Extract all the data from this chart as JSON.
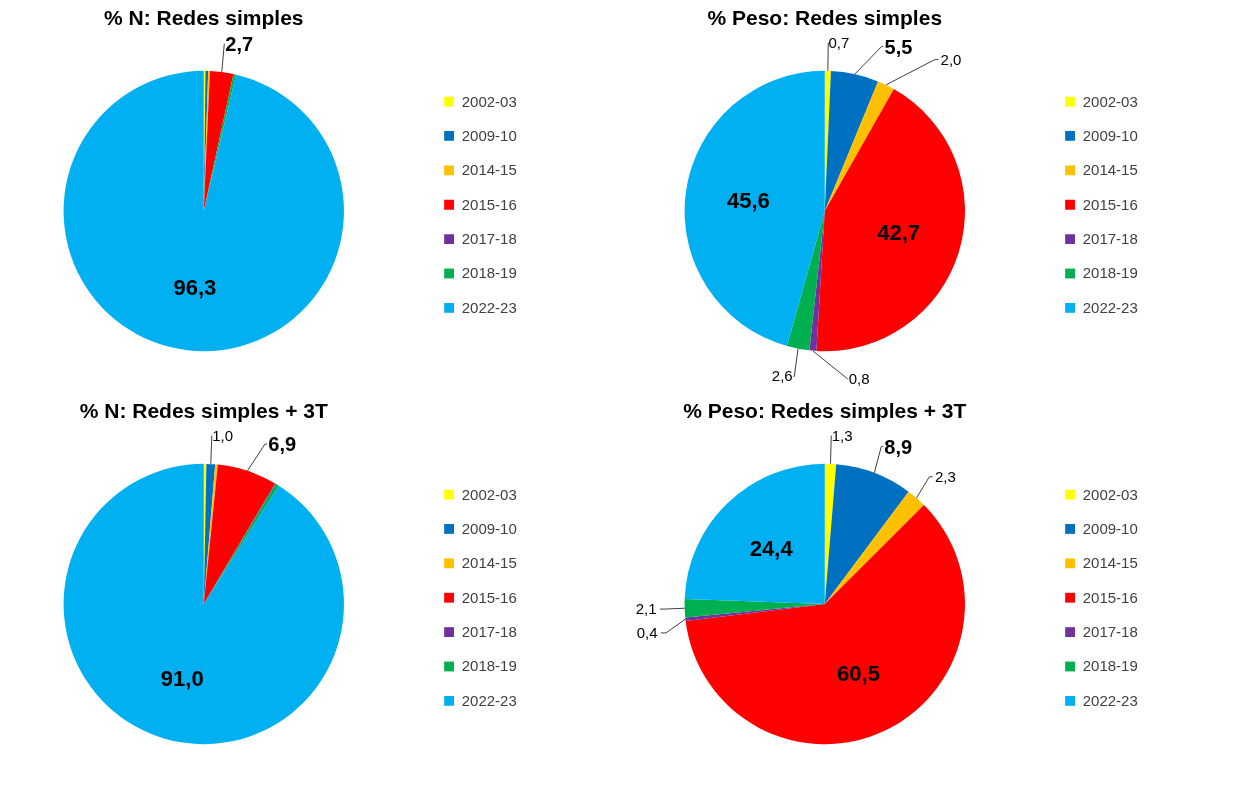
{
  "chart_data": [
    {
      "type": "pie",
      "title": "% N: Redes simples",
      "categories": [
        "2002-03",
        "2009-10",
        "2014-15",
        "2015-16",
        "2017-18",
        "2018-19",
        "2022-23"
      ],
      "values": [
        0.2,
        0.3,
        0.2,
        2.7,
        0,
        0.3,
        96.3
      ],
      "colors": [
        "#ffff00",
        "#0070c0",
        "#ffc000",
        "#ff0000",
        "#7030a0",
        "#00b050",
        "#00b0f0"
      ],
      "value_labels": [
        null,
        null,
        null,
        "2,7",
        null,
        null,
        "96,3"
      ],
      "legend": "right"
    },
    {
      "type": "pie",
      "title": "% Peso: Redes simples",
      "categories": [
        "2002-03",
        "2009-10",
        "2014-15",
        "2015-16",
        "2017-18",
        "2018-19",
        "2022-23"
      ],
      "values": [
        0.7,
        5.5,
        2.0,
        42.7,
        0.8,
        2.6,
        45.6
      ],
      "colors": [
        "#ffff00",
        "#0070c0",
        "#ffc000",
        "#ff0000",
        "#7030a0",
        "#00b050",
        "#00b0f0"
      ],
      "value_labels": [
        "0,7",
        "5,5",
        "2,0",
        "42,7",
        "0,8",
        "2,6",
        "45,6"
      ],
      "legend": "right"
    },
    {
      "type": "pie",
      "title": "% N: Redes simples + 3T",
      "categories": [
        "2002-03",
        "2009-10",
        "2014-15",
        "2015-16",
        "2017-18",
        "2018-19",
        "2022-23"
      ],
      "values": [
        0.3,
        1.0,
        0.3,
        6.9,
        0.1,
        0.4,
        91.0
      ],
      "colors": [
        "#ffff00",
        "#0070c0",
        "#ffc000",
        "#ff0000",
        "#7030a0",
        "#00b050",
        "#00b0f0"
      ],
      "value_labels": [
        null,
        "1,0",
        null,
        "6,9",
        null,
        null,
        "91,0"
      ],
      "legend": "right"
    },
    {
      "type": "pie",
      "title": "% Peso: Redes simples + 3T",
      "categories": [
        "2002-03",
        "2009-10",
        "2014-15",
        "2015-16",
        "2017-18",
        "2018-19",
        "2022-23"
      ],
      "values": [
        1.3,
        8.9,
        2.3,
        60.5,
        0.4,
        2.1,
        24.4
      ],
      "colors": [
        "#ffff00",
        "#0070c0",
        "#ffc000",
        "#ff0000",
        "#7030a0",
        "#00b050",
        "#00b0f0"
      ],
      "value_labels": [
        "1,3",
        "8,9",
        "2,3",
        "60,5",
        "0,4",
        "2,1",
        "24,4"
      ],
      "legend": "right"
    }
  ]
}
